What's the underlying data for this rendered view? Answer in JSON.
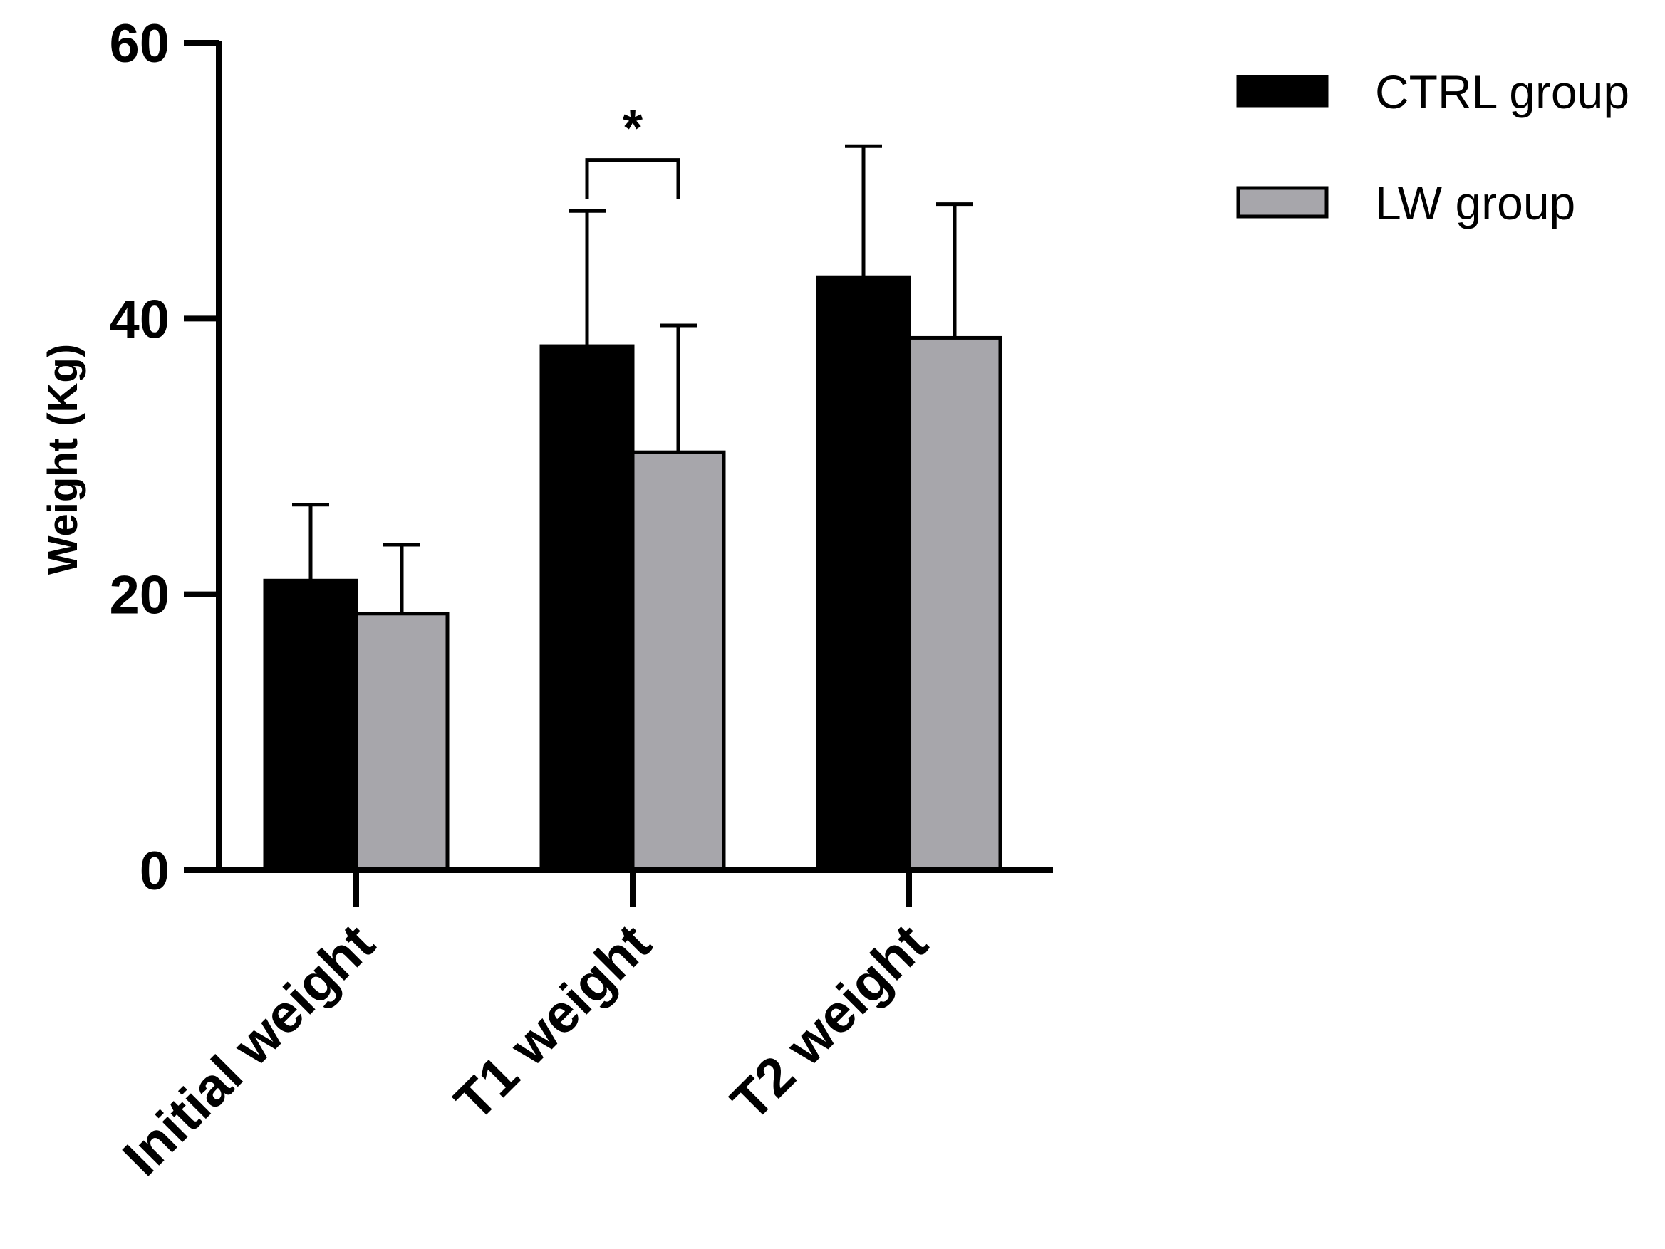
{
  "chart_data": {
    "type": "bar",
    "title": "",
    "xlabel": "",
    "ylabel": "Weight (Kg)",
    "ylim": [
      0,
      60
    ],
    "yticks": [
      0,
      20,
      40,
      60
    ],
    "categories": [
      "Initial weight",
      "T1 weight",
      "T2 weight"
    ],
    "series": [
      {
        "name": "CTRL group",
        "color": "#000000",
        "values": [
          21,
          38,
          43
        ],
        "error": [
          5.5,
          9.8,
          9.5
        ]
      },
      {
        "name": "LW group",
        "color": "#a7a6ab",
        "values": [
          18.6,
          30.3,
          38.6
        ],
        "error": [
          5,
          9.2,
          9.7
        ]
      }
    ],
    "grid": false,
    "legend_position": "top-right",
    "annotations": [
      {
        "text": "*",
        "category": "T1 weight",
        "between": [
          "CTRL group",
          "LW group"
        ],
        "y": 51.5
      }
    ]
  }
}
